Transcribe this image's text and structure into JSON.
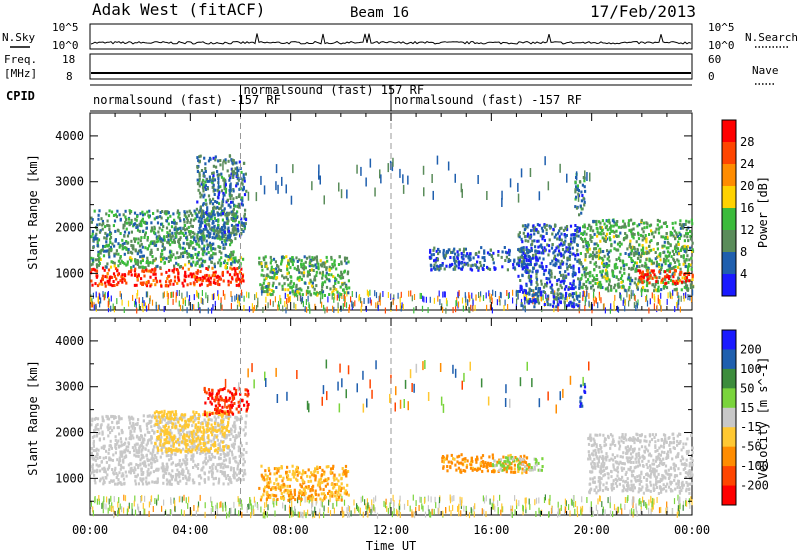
{
  "header": {
    "station": "Adak West (fitACF)",
    "beam": "Beam 16",
    "date": "17/Feb/2013"
  },
  "panels": {
    "nsky_label": "N.Sky",
    "nsearch_label": "N.Search",
    "freq_label_line1": "Freq.",
    "freq_label_line2": "[MHz]",
    "nave_label": "Nave",
    "cpid_label": "CPID",
    "nsky_ticks": [
      "10^5",
      "10^0"
    ],
    "nsearch_ticks": [
      "10^5",
      "10^0"
    ],
    "freq_ticks": [
      "18",
      "8"
    ],
    "nave_ticks": [
      "60",
      "0"
    ],
    "cpid_segments": [
      {
        "label": "normalsound (fast) -157 RF",
        "start": 0,
        "end": 6
      },
      {
        "label": "normalsound (fast) 157 RF",
        "start": 6,
        "end": 12
      },
      {
        "label": "normalsound (fast) -157 RF",
        "start": 12,
        "end": 24
      }
    ]
  },
  "chart_data": [
    {
      "type": "heatmap",
      "name": "power",
      "ylabel": "Slant Range [km]",
      "xlabel": "Time UT",
      "xlim": [
        0,
        24
      ],
      "ylim": [
        200,
        4500
      ],
      "yticks": [
        1000,
        2000,
        3000,
        4000
      ],
      "xtick_labels": [
        "00:00",
        "04:00",
        "08:00",
        "12:00",
        "16:00",
        "20:00",
        "00:00"
      ],
      "colorbar_label": "Power [dB]",
      "colorbar_ticks": [
        "4",
        "8",
        "12",
        "16",
        "20",
        "24",
        "28"
      ],
      "colorbar_colors": [
        "#1a1aff",
        "#1f5fae",
        "#5a8c5a",
        "#3bbb3b",
        "#ffd200",
        "#ff8c00",
        "#ff4500",
        "#ff0000"
      ],
      "regions": [
        {
          "t0": 0.0,
          "t1": 6.1,
          "r0": 750,
          "r1": 1150,
          "level": 28
        },
        {
          "t0": 0.0,
          "t1": 6.1,
          "r0": 1150,
          "r1": 1400,
          "level": 12
        },
        {
          "t0": 0.0,
          "t1": 5.8,
          "r0": 1400,
          "r1": 2400,
          "level": 10
        },
        {
          "t0": 4.2,
          "t1": 6.2,
          "r0": 1800,
          "r1": 3600,
          "level": 8
        },
        {
          "t0": 6.7,
          "t1": 10.3,
          "r0": 550,
          "r1": 1400,
          "level": 12
        },
        {
          "t0": 13.5,
          "t1": 17.5,
          "r0": 1100,
          "r1": 1600,
          "level": 6
        },
        {
          "t0": 17.0,
          "t1": 19.5,
          "r0": 300,
          "r1": 2100,
          "level": 6
        },
        {
          "t0": 19.3,
          "t1": 19.7,
          "r0": 2300,
          "r1": 3200,
          "level": 8
        },
        {
          "t0": 19.5,
          "t1": 24.0,
          "r0": 650,
          "r1": 2200,
          "level": 12
        },
        {
          "t0": 21.8,
          "t1": 24.0,
          "r0": 800,
          "r1": 1100,
          "level": 28
        }
      ]
    },
    {
      "type": "heatmap",
      "name": "velocity",
      "ylabel": "Slant Range [km]",
      "xlabel": "Time UT",
      "xlim": [
        0,
        24
      ],
      "ylim": [
        200,
        4500
      ],
      "yticks": [
        1000,
        2000,
        3000,
        4000
      ],
      "xtick_labels": [
        "00:00",
        "04:00",
        "08:00",
        "12:00",
        "16:00",
        "20:00",
        "00:00"
      ],
      "colorbar_label": "Velocity [m s^-1]",
      "colorbar_ticks": [
        "200",
        "100",
        "50",
        "15",
        "-15",
        "-50",
        "-100",
        "-200"
      ],
      "colorbar_colors": [
        "#1a1aff",
        "#1f5fae",
        "#3c8c3c",
        "#7ad43c",
        "#c8c8c8",
        "#ffc832",
        "#ff8c00",
        "#ff4500",
        "#ff0000"
      ],
      "regions": [
        {
          "t0": 0.0,
          "t1": 6.2,
          "r0": 900,
          "r1": 2400,
          "level": 0
        },
        {
          "t0": 2.5,
          "t1": 5.5,
          "r0": 1600,
          "r1": 2500,
          "level": -30
        },
        {
          "t0": 4.5,
          "t1": 6.3,
          "r0": 2400,
          "r1": 3000,
          "level": -200
        },
        {
          "t0": 6.7,
          "t1": 10.3,
          "r0": 550,
          "r1": 1300,
          "level": -50
        },
        {
          "t0": 14.0,
          "t1": 17.5,
          "r0": 1150,
          "r1": 1550,
          "level": -60
        },
        {
          "t0": 16.0,
          "t1": 18.0,
          "r0": 1200,
          "r1": 1500,
          "level": 20
        },
        {
          "t0": 19.5,
          "t1": 19.7,
          "r0": 2500,
          "r1": 3100,
          "level": 200
        },
        {
          "t0": 19.8,
          "t1": 24.0,
          "r0": 700,
          "r1": 2000,
          "level": 0
        }
      ]
    }
  ]
}
